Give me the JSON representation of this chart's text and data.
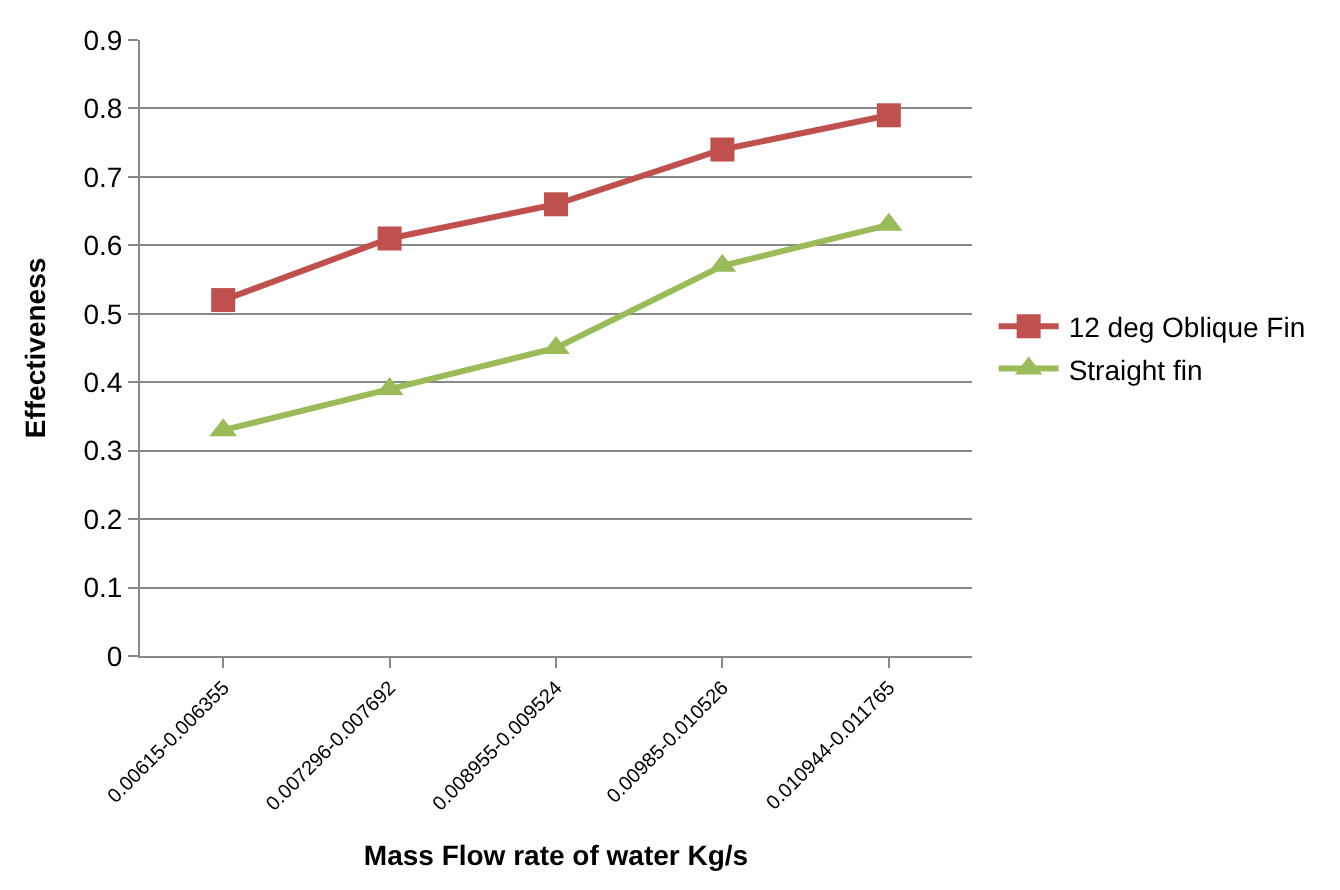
{
  "chart_data": {
    "type": "line",
    "xlabel": "Mass Flow rate of water Kg/s",
    "ylabel": "Effectiveness",
    "categories": [
      "0.00615-0.006355",
      "0.007296-0.007692",
      "0.008955-0.009524",
      "0.00985-0.010526",
      "0.010944-0.011765"
    ],
    "series": [
      {
        "name": "12 deg Oblique Fin",
        "color": "#c0504d",
        "marker": "square",
        "values": [
          0.52,
          0.61,
          0.66,
          0.74,
          0.79
        ]
      },
      {
        "name": "Straight fin",
        "color": "#9bbb59",
        "marker": "triangle",
        "values": [
          0.33,
          0.39,
          0.45,
          0.57,
          0.63
        ]
      }
    ],
    "ylim": [
      0,
      0.9
    ],
    "yticks": [
      0,
      0.1,
      0.2,
      0.3,
      0.4,
      0.5,
      0.6,
      0.7,
      0.8,
      0.9
    ],
    "grid": "y",
    "legend": "right",
    "line_style": "solid"
  }
}
